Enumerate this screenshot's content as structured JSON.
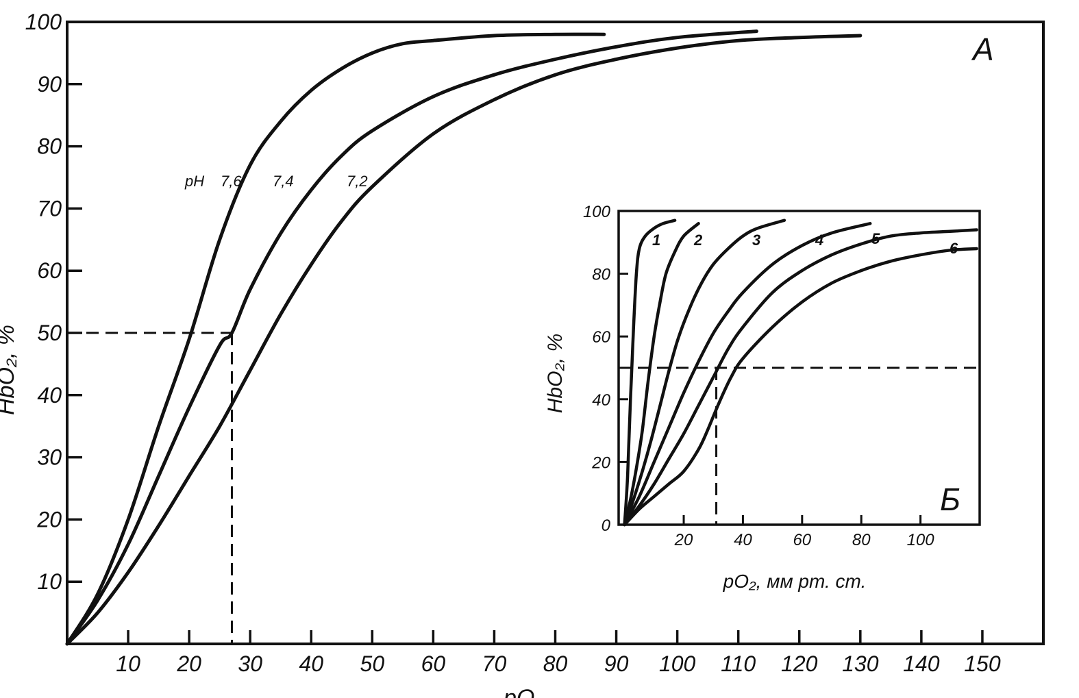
{
  "chart_data": [
    {
      "id": "A",
      "type": "line",
      "panel_label": "A",
      "xlabel": "pO",
      "ylabel": "HbO₂, %",
      "xlim": [
        0,
        160
      ],
      "ylim": [
        0,
        100
      ],
      "x_ticks": [
        10,
        20,
        30,
        40,
        50,
        60,
        70,
        80,
        90,
        100,
        110,
        120,
        130,
        140,
        150
      ],
      "y_ticks": [
        10,
        20,
        30,
        40,
        50,
        60,
        70,
        80,
        90,
        100
      ],
      "series_label_prefix": "pH",
      "series": [
        {
          "name": "7,6",
          "x": [
            0,
            5,
            10,
            15,
            20,
            25,
            30,
            35,
            40,
            45,
            50,
            55,
            60,
            70,
            80,
            88
          ],
          "y": [
            0,
            8,
            20,
            35,
            49,
            65,
            77,
            84,
            89,
            92.5,
            95,
            96.5,
            97,
            97.8,
            98,
            98
          ]
        },
        {
          "name": "7,4",
          "x": [
            0,
            5,
            10,
            15,
            20,
            25,
            27,
            30,
            35,
            40,
            45,
            50,
            60,
            70,
            80,
            90,
            100,
            113
          ],
          "y": [
            0,
            7,
            16,
            27,
            38,
            48,
            50,
            57,
            66,
            73,
            78.5,
            82.5,
            88,
            91.5,
            94,
            96,
            97.5,
            98.5
          ]
        },
        {
          "name": "7,2",
          "x": [
            0,
            5,
            10,
            15,
            20,
            25,
            30,
            35,
            40,
            45,
            50,
            60,
            70,
            80,
            90,
            100,
            110,
            120,
            130
          ],
          "y": [
            0,
            5,
            11.5,
            19,
            27,
            35,
            44,
            53,
            61,
            68,
            73.5,
            82,
            87.5,
            91.5,
            94,
            95.8,
            97,
            97.5,
            97.8
          ]
        }
      ],
      "reference_lines": {
        "y": 50,
        "x": 27
      }
    },
    {
      "id": "B",
      "type": "line",
      "panel_label": "Б",
      "xlabel": "pO₂, мм рт. ст.",
      "ylabel": "HbO₂, %",
      "xlim": [
        -2,
        120
      ],
      "ylim": [
        0,
        100
      ],
      "x_ticks": [
        20,
        40,
        60,
        80,
        100
      ],
      "y_ticks": [
        0,
        20,
        40,
        60,
        80,
        100
      ],
      "series": [
        {
          "name": "1",
          "x": [
            0,
            1,
            2,
            3,
            4,
            5,
            7,
            10,
            13,
            17
          ],
          "y": [
            0,
            15,
            40,
            62,
            80,
            88,
            92,
            94.5,
            96,
            97
          ]
        },
        {
          "name": "2",
          "x": [
            0,
            2,
            4,
            6,
            8,
            10,
            12,
            14,
            17,
            20,
            25
          ],
          "y": [
            0,
            8,
            18,
            30,
            46,
            60,
            71,
            80,
            87,
            92,
            96
          ]
        },
        {
          "name": "3",
          "x": [
            0,
            3,
            6,
            9,
            12,
            15,
            18,
            22,
            26,
            30,
            35,
            40,
            45,
            54
          ],
          "y": [
            0,
            8,
            17,
            27,
            38,
            49,
            59,
            69,
            77,
            83,
            88,
            92,
            94.5,
            97
          ]
        },
        {
          "name": "4",
          "x": [
            0,
            5,
            10,
            15,
            20,
            25,
            30,
            35,
            40,
            50,
            60,
            70,
            83
          ],
          "y": [
            0,
            9,
            20,
            31,
            42,
            52,
            61,
            68,
            74,
            83,
            89,
            93,
            96
          ]
        },
        {
          "name": "5",
          "x": [
            0,
            5,
            10,
            15,
            20,
            25,
            30,
            35,
            40,
            50,
            60,
            70,
            80,
            90,
            100,
            110,
            119
          ],
          "y": [
            0,
            6,
            13,
            21,
            29,
            38,
            47,
            56,
            63,
            74,
            81,
            86,
            89.5,
            92,
            93,
            93.5,
            94
          ]
        },
        {
          "name": "6",
          "x": [
            0,
            5,
            10,
            15,
            20,
            25,
            28,
            32,
            36,
            40,
            50,
            60,
            70,
            80,
            90,
            100,
            110,
            119
          ],
          "y": [
            0,
            5,
            9,
            13,
            17,
            24,
            30,
            39,
            47,
            53,
            63,
            71,
            77,
            81,
            84,
            86,
            87.5,
            88
          ]
        }
      ],
      "reference_lines": {
        "y": 50,
        "x": 31
      }
    }
  ]
}
